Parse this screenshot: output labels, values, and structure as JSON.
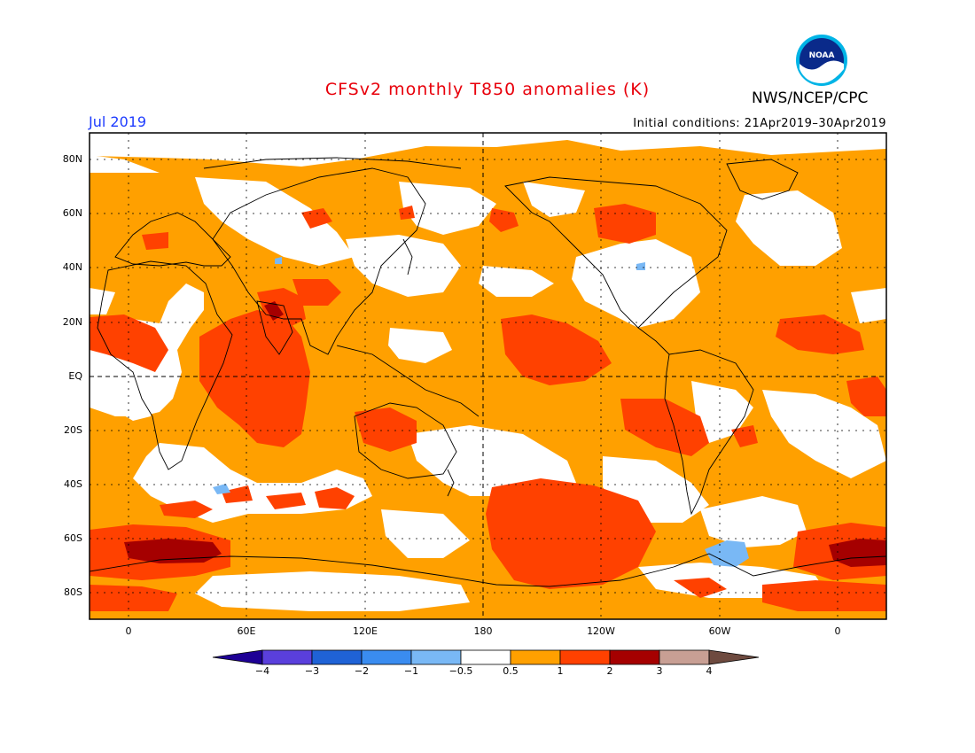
{
  "title": "CFSv2 monthly T850 anomalies (K)",
  "month": "Jul 2019",
  "agency": "NWS/NCEP/CPC",
  "logo_text": "NOAA",
  "initial_conditions": "Initial conditions: 21Apr2019–30Apr2019",
  "colors": {
    "title": "#e8000b",
    "month": "#1e3cff"
  },
  "lat_labels": [
    "80N",
    "60N",
    "40N",
    "20N",
    "EQ",
    "20S",
    "40S",
    "60S",
    "80S"
  ],
  "lon_labels": [
    "0",
    "60E",
    "120E",
    "180",
    "120W",
    "60W",
    "0"
  ],
  "colorbar": {
    "colors": [
      "#1e0095",
      "#5a3fdc",
      "#1f62d6",
      "#3a8cf0",
      "#79b8f5",
      "#ffffff",
      "#ffa000",
      "#ff4100",
      "#a50000",
      "#c89f94",
      "#6e4a3f"
    ],
    "labels": [
      "−4",
      "−3",
      "−2",
      "−1",
      "−0.5",
      "0.5",
      "1",
      "2",
      "3",
      "4"
    ]
  }
}
